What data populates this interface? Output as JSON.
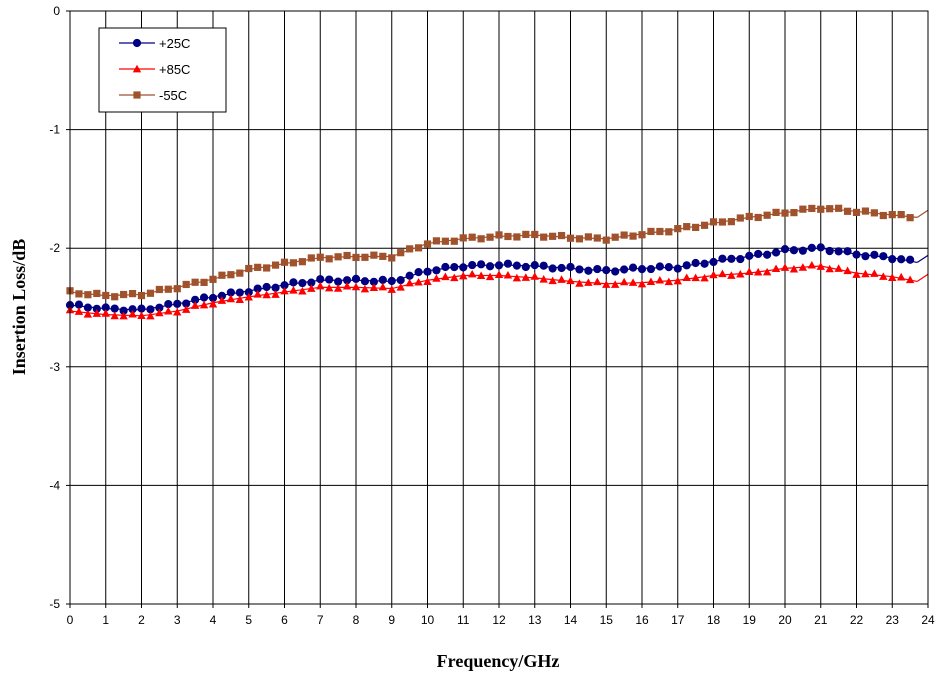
{
  "chart_data": {
    "type": "line",
    "title": "",
    "xlabel": "Frequency/GHz",
    "ylabel": "Insertion Loss/dB",
    "xlim": [
      0,
      24
    ],
    "ylim": [
      -5,
      0
    ],
    "xticks": [
      "0",
      "1",
      "2",
      "3",
      "4",
      "5",
      "6",
      "7",
      "8",
      "9",
      "10",
      "11",
      "12",
      "13",
      "14",
      "15",
      "16",
      "17",
      "18",
      "19",
      "20",
      "21",
      "22",
      "23",
      "24"
    ],
    "yticks": [
      "0",
      "-1",
      "-2",
      "-3",
      "-4",
      "-5"
    ],
    "grid": "vertical gridlines at every 1 GHz, horizontal gridlines at every 1 dB",
    "legend": "top-left",
    "series": [
      {
        "name": "+25C",
        "color": "#000080",
        "marker": "circle",
        "x": [
          0,
          1,
          2,
          3,
          4,
          5,
          6,
          7,
          8,
          9,
          10,
          11,
          12,
          13,
          14,
          15,
          16,
          17,
          18,
          19,
          20,
          21,
          22,
          23,
          23.7
        ],
        "values": [
          -2.48,
          -2.51,
          -2.52,
          -2.47,
          -2.41,
          -2.36,
          -2.31,
          -2.27,
          -2.27,
          -2.28,
          -2.19,
          -2.15,
          -2.14,
          -2.15,
          -2.17,
          -2.19,
          -2.17,
          -2.16,
          -2.11,
          -2.07,
          -2.02,
          -2.0,
          -2.05,
          -2.08,
          -2.12
        ]
      },
      {
        "name": "+85C",
        "color": "#ff0000",
        "marker": "triangle",
        "x": [
          0,
          1,
          2,
          3,
          4,
          5,
          6,
          7,
          8,
          9,
          10,
          11,
          12,
          13,
          14,
          15,
          16,
          17,
          18,
          19,
          20,
          21,
          22,
          23,
          23.7
        ],
        "values": [
          -2.53,
          -2.56,
          -2.57,
          -2.53,
          -2.46,
          -2.41,
          -2.37,
          -2.33,
          -2.33,
          -2.34,
          -2.27,
          -2.23,
          -2.23,
          -2.25,
          -2.28,
          -2.3,
          -2.29,
          -2.27,
          -2.23,
          -2.21,
          -2.17,
          -2.15,
          -2.21,
          -2.24,
          -2.28
        ]
      },
      {
        "name": "-55C",
        "color": "#a0522d",
        "marker": "square",
        "x": [
          0,
          1,
          2,
          3,
          4,
          5,
          6,
          7,
          8,
          9,
          10,
          11,
          12,
          13,
          14,
          15,
          16,
          17,
          18,
          19,
          20,
          21,
          22,
          23,
          23.7
        ],
        "values": [
          -2.37,
          -2.4,
          -2.39,
          -2.33,
          -2.26,
          -2.18,
          -2.13,
          -2.08,
          -2.07,
          -2.07,
          -1.96,
          -1.92,
          -1.9,
          -1.89,
          -1.91,
          -1.92,
          -1.88,
          -1.84,
          -1.79,
          -1.74,
          -1.7,
          -1.66,
          -1.69,
          -1.72,
          -1.74
        ]
      }
    ]
  }
}
